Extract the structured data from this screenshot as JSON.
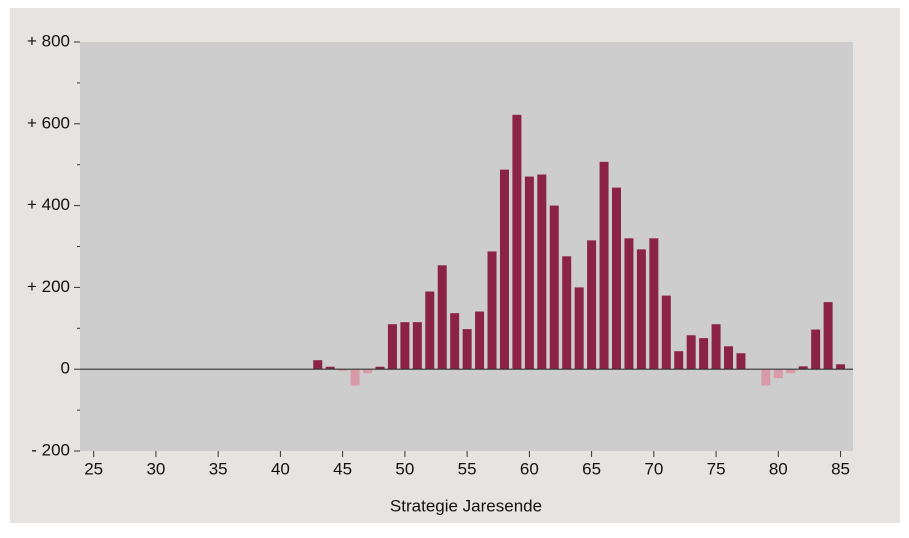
{
  "chart_data": {
    "type": "bar",
    "x_label": "Strategie Jaresende",
    "x": [
      43,
      44,
      45,
      46,
      47,
      48,
      49,
      50,
      51,
      52,
      53,
      54,
      55,
      56,
      57,
      58,
      59,
      60,
      61,
      62,
      63,
      64,
      65,
      66,
      67,
      68,
      69,
      70,
      71,
      72,
      73,
      74,
      75,
      76,
      77,
      78,
      79,
      80,
      81,
      82,
      83,
      84,
      85
    ],
    "values": [
      22,
      6,
      -4,
      -40,
      -10,
      6,
      110,
      115,
      115,
      190,
      254,
      137,
      98,
      141,
      288,
      488,
      622,
      471,
      476,
      400,
      276,
      200,
      315,
      507,
      444,
      320,
      293,
      320,
      180,
      44,
      83,
      76,
      110,
      56,
      39,
      0,
      -40,
      -22,
      -10,
      7,
      97,
      164,
      12
    ],
    "color": "#8b2346",
    "negative_color": "#d99aa8",
    "xlim": [
      23.9,
      86
    ],
    "xticks": [
      25,
      30,
      35,
      40,
      45,
      50,
      55,
      60,
      65,
      70,
      75,
      80,
      85
    ],
    "ylim": [
      -200,
      800
    ],
    "yticks": [
      {
        "value": 800,
        "label": "+ 800"
      },
      {
        "value": 600,
        "label": "+ 600"
      },
      {
        "value": 400,
        "label": "+ 400"
      },
      {
        "value": 200,
        "label": "+ 200"
      },
      0,
      {
        "value": -200,
        "label": "- 200"
      }
    ],
    "yminor_ticks": [
      700,
      500,
      300,
      100,
      -100
    ]
  }
}
